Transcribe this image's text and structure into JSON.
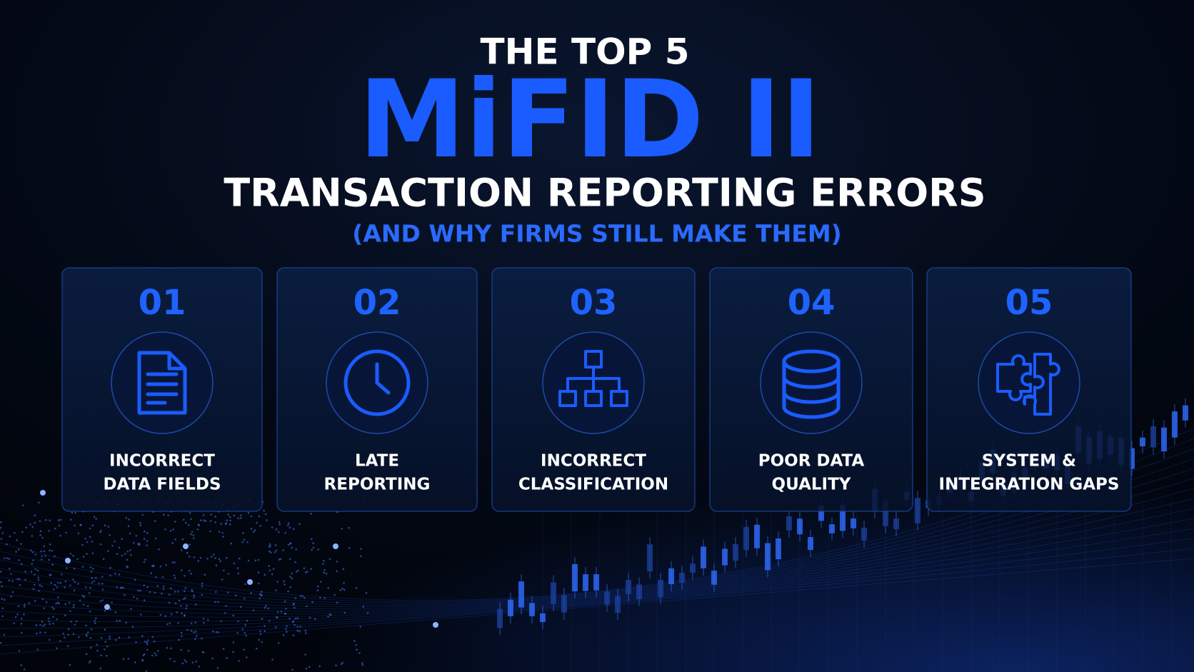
{
  "header": {
    "kicker": "THE TOP 5",
    "title": "MiFID II",
    "subtitle": "TRANSACTION REPORTING ERRORS",
    "tagline": "(AND WHY FIRMS STILL MAKE THEM)"
  },
  "cards": [
    {
      "number": "01",
      "label": [
        "INCORRECT",
        "DATA FIELDS"
      ]
    },
    {
      "number": "02",
      "label": [
        "LATE",
        "REPORTING"
      ]
    },
    {
      "number": "03",
      "label": [
        "INCORRECT",
        "CLASSIFICATION"
      ]
    },
    {
      "number": "04",
      "label": [
        "POOR DATA",
        "QUALITY"
      ]
    },
    {
      "number": "05",
      "label": [
        "SYSTEM &",
        "INTEGRATION GAPS"
      ]
    }
  ]
}
